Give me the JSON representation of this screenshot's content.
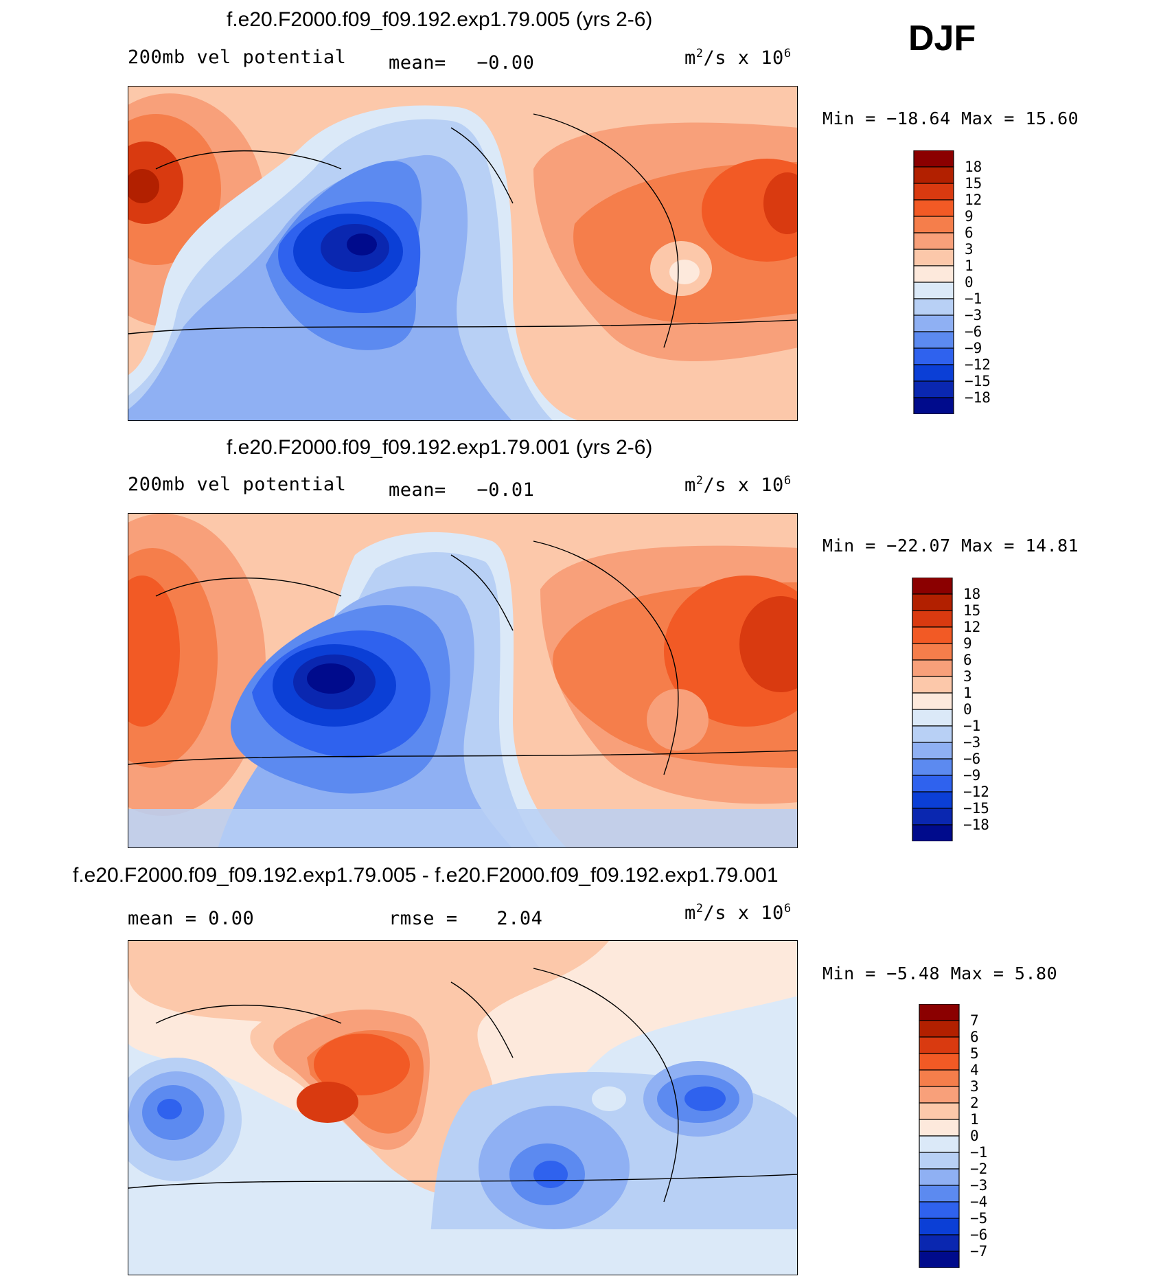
{
  "season": "DJF",
  "panels": [
    {
      "title": "f.e20.F2000.f09_f09.192.exp1.79.005 (yrs 2-6)",
      "left_label": "200mb vel potential",
      "mean_label": "mean=",
      "mean_value": "−0.00",
      "units_base": "m",
      "units_sup": "2",
      "units_mid": "/s x 10",
      "units_exp": "6",
      "minmax": "Min = −18.64 Max =  15.60",
      "colorbar_labels": [
        "18",
        "15",
        "12",
        "9",
        "6",
        "3",
        "1",
        "0",
        "−1",
        "−3",
        "−6",
        "−9",
        "−12",
        "−15",
        "−18"
      ]
    },
    {
      "title": "f.e20.F2000.f09_f09.192.exp1.79.001 (yrs 2-6)",
      "left_label": "200mb vel potential",
      "mean_label": "mean=",
      "mean_value": "−0.01",
      "units_base": "m",
      "units_sup": "2",
      "units_mid": "/s x 10",
      "units_exp": "6",
      "minmax": "Min = −22.07 Max =  14.81",
      "colorbar_labels": [
        "18",
        "15",
        "12",
        "9",
        "6",
        "3",
        "1",
        "0",
        "−1",
        "−3",
        "−6",
        "−9",
        "−12",
        "−15",
        "−18"
      ]
    },
    {
      "title": "f.e20.F2000.f09_f09.192.exp1.79.005 - f.e20.F2000.f09_f09.192.exp1.79.001",
      "left_label": "mean =    0.00",
      "mean_label": "rmse =",
      "mean_value": "2.04",
      "units_base": "m",
      "units_sup": "2",
      "units_mid": "/s x 10",
      "units_exp": "6",
      "minmax": "Min =   −5.48 Max =   5.80",
      "colorbar_labels": [
        "7",
        "6",
        "5",
        "4",
        "3",
        "2",
        "1",
        "0",
        "−1",
        "−2",
        "−3",
        "−4",
        "−5",
        "−6",
        "−7"
      ]
    }
  ],
  "colors": {
    "ramp": [
      "#8b0000",
      "#b22000",
      "#d93a10",
      "#f25a25",
      "#f57e4b",
      "#f8a07a",
      "#fcc8aa",
      "#fde9dc",
      "#dbe9f8",
      "#b8d0f5",
      "#8fb0f3",
      "#5c8af0",
      "#2f62ee",
      "#0b3fd6",
      "#0a27b0",
      "#000b8c"
    ]
  }
}
